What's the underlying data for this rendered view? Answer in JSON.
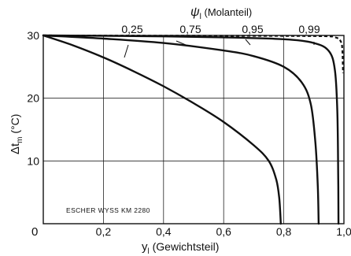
{
  "chart_data": {
    "type": "line",
    "title": "",
    "top_axis_label": {
      "symbol": "ψ",
      "subscript": "l",
      "text": " (Molanteil)"
    },
    "xlabel": {
      "symbol": "y",
      "subscript": "l",
      "text": "  (Gewichtsteil)"
    },
    "ylabel": {
      "prefix": "Δt",
      "subscript": "m",
      "text": " (°C)"
    },
    "xlim": [
      0,
      1.0
    ],
    "ylim": [
      0,
      30
    ],
    "grid": true,
    "x_ticks": [
      {
        "value": 0,
        "label": "0"
      },
      {
        "value": 0.2,
        "label": "0,2"
      },
      {
        "value": 0.4,
        "label": "0,4"
      },
      {
        "value": 0.6,
        "label": "0,6"
      },
      {
        "value": 0.8,
        "label": "0,8"
      },
      {
        "value": 1.0,
        "label": "1,0"
      }
    ],
    "y_ticks": [
      {
        "value": 10,
        "label": "10"
      },
      {
        "value": 20,
        "label": "20"
      },
      {
        "value": 30,
        "label": "30"
      }
    ],
    "origin_label": "0",
    "annotation": "ESCHER WYSS  KM 2280",
    "series": [
      {
        "name": "0,25",
        "style": "solid",
        "points": [
          [
            0,
            30
          ],
          [
            0.1,
            28.4
          ],
          [
            0.2,
            26.5
          ],
          [
            0.3,
            24.3
          ],
          [
            0.4,
            21.9
          ],
          [
            0.5,
            19.2
          ],
          [
            0.6,
            16.2
          ],
          [
            0.7,
            12.5
          ],
          [
            0.75,
            10.0
          ],
          [
            0.775,
            7.0
          ],
          [
            0.785,
            4.0
          ],
          [
            0.79,
            0
          ]
        ]
      },
      {
        "name": "0,75",
        "style": "solid",
        "points": [
          [
            0,
            30
          ],
          [
            0.2,
            29.5
          ],
          [
            0.4,
            28.8
          ],
          [
            0.6,
            27.6
          ],
          [
            0.7,
            26.7
          ],
          [
            0.8,
            25.0
          ],
          [
            0.86,
            22.5
          ],
          [
            0.89,
            19.0
          ],
          [
            0.905,
            13.0
          ],
          [
            0.913,
            6.0
          ],
          [
            0.916,
            0
          ]
        ]
      },
      {
        "name": "0,95",
        "style": "solid",
        "points": [
          [
            0,
            30
          ],
          [
            0.3,
            29.9
          ],
          [
            0.6,
            29.7
          ],
          [
            0.8,
            29.4
          ],
          [
            0.9,
            28.8
          ],
          [
            0.95,
            27.5
          ],
          [
            0.97,
            24.5
          ],
          [
            0.978,
            18.0
          ],
          [
            0.981,
            8.0
          ],
          [
            0.982,
            0
          ]
        ]
      },
      {
        "name": "0,99",
        "style": "dashed",
        "points": [
          [
            0,
            30
          ],
          [
            0.5,
            29.95
          ],
          [
            0.9,
            29.9
          ],
          [
            0.97,
            29.7
          ],
          [
            0.99,
            29.0
          ],
          [
            0.995,
            27.5
          ],
          [
            0.997,
            24.0
          ]
        ]
      }
    ]
  }
}
